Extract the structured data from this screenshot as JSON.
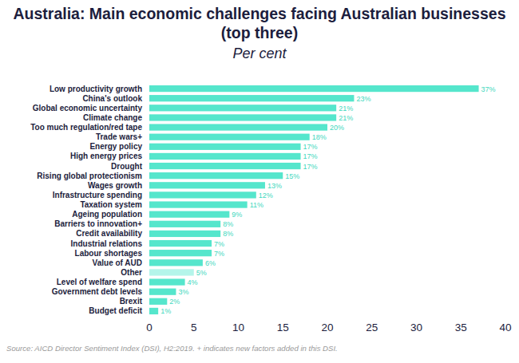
{
  "chart_data": {
    "type": "bar",
    "orientation": "horizontal",
    "title": "Australia: Main economic challenges facing Australian businesses (top three)",
    "subtitle": "Per cent",
    "source": "Source: AICD Director Sentiment Index (DSI), H2:2019. + indicates new factors added in this DSI.",
    "categories": [
      "Low productivity growth",
      "China's outlook",
      "Global economic uncertainty",
      "Climate change",
      "Too much regulation/red tape",
      "Trade wars+",
      "Energy policy",
      "High energy prices",
      "Drought",
      "Rising global protectionism",
      "Wages growth",
      "Infrastructure spending",
      "Taxation system",
      "Ageing population",
      "Barriers to innovation+",
      "Credit availability",
      "Industrial relations",
      "Labour shortages",
      "Value of AUD",
      "Other",
      "Level of welfare spend",
      "Government debt levels",
      "Brexit",
      "Budget deficit"
    ],
    "values": [
      37,
      23,
      21,
      21,
      20,
      18,
      17,
      17,
      17,
      15,
      13,
      12,
      11,
      9,
      8,
      8,
      7,
      7,
      6,
      5,
      4,
      3,
      2,
      1
    ],
    "value_labels": [
      "37%",
      "23%",
      "21%",
      "21%",
      "20%",
      "18%",
      "17%",
      "17%",
      "17%",
      "15%",
      "13%",
      "12%",
      "11%",
      "9%",
      "8%",
      "8%",
      "7%",
      "7%",
      "6%",
      "5%",
      "4%",
      "3%",
      "2%",
      "1%"
    ],
    "colors": [
      "#55e6cc",
      "#55e6cc",
      "#55e6cc",
      "#55e6cc",
      "#55e6cc",
      "#55e6cc",
      "#55e6cc",
      "#55e6cc",
      "#55e6cc",
      "#55e6cc",
      "#55e6cc",
      "#55e6cc",
      "#55e6cc",
      "#55e6cc",
      "#55e6cc",
      "#55e6cc",
      "#55e6cc",
      "#55e6cc",
      "#55e6cc",
      "#b4f5ea",
      "#55e6cc",
      "#55e6cc",
      "#55e6cc",
      "#55e6cc"
    ],
    "xlim": [
      0,
      40
    ],
    "xticks": [
      0,
      5,
      10,
      15,
      20,
      25,
      30,
      35,
      40
    ],
    "grid": false,
    "data_labels": true
  }
}
